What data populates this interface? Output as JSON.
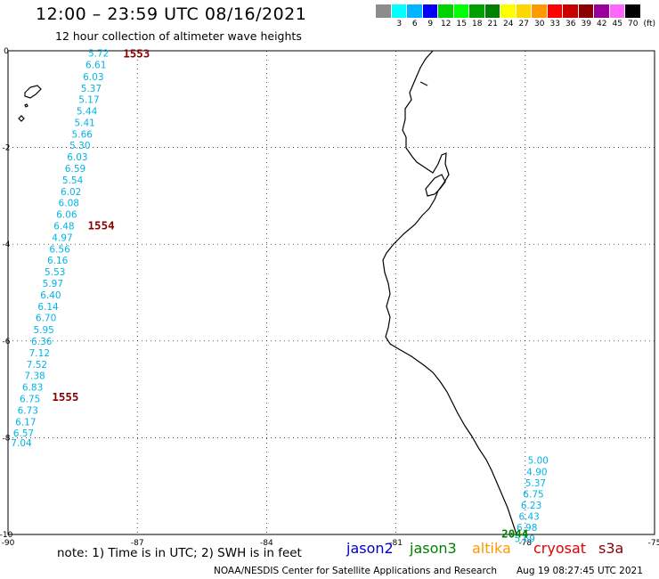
{
  "header": {
    "title": "12:00 – 23:59 UTC 08/16/2021",
    "subtitle": "12 hour collection of altimeter wave heights"
  },
  "scale": {
    "unit": "(ft)",
    "bins": [
      {
        "label": "",
        "color": "#8c8c8c"
      },
      {
        "label": "3",
        "color": "#00ffff"
      },
      {
        "label": "6",
        "color": "#00b4ff"
      },
      {
        "label": "9",
        "color": "#0000ff"
      },
      {
        "label": "12",
        "color": "#00d200"
      },
      {
        "label": "15",
        "color": "#00ff00"
      },
      {
        "label": "18",
        "color": "#00a000"
      },
      {
        "label": "21",
        "color": "#008000"
      },
      {
        "label": "24",
        "color": "#ffff00"
      },
      {
        "label": "27",
        "color": "#ffd700"
      },
      {
        "label": "30",
        "color": "#ff9900"
      },
      {
        "label": "33",
        "color": "#ff0000"
      },
      {
        "label": "36",
        "color": "#c80000"
      },
      {
        "label": "39",
        "color": "#8b0000"
      },
      {
        "label": "42",
        "color": "#990099"
      },
      {
        "label": "45",
        "color": "#ff66ff"
      },
      {
        "label": "70",
        "color": "#000000"
      }
    ]
  },
  "map": {
    "lon_ticks": [
      "-90",
      "-87",
      "-84",
      "-81",
      "-78",
      "-75"
    ],
    "lat_ticks": [
      "0",
      "-2",
      "-4",
      "-6",
      "-8",
      "-10"
    ],
    "tracks": [
      {
        "satellite": "cryosat",
        "text_color": "#00b4e6",
        "time_labels": [
          {
            "text": "1553",
            "lon": -87.33,
            "lat": -0.05
          },
          {
            "text": "1554",
            "lon": -88.15,
            "lat": -3.6
          },
          {
            "text": "1555",
            "lon": -88.98,
            "lat": -7.15
          }
        ],
        "points": [
          {
            "lon": -87.9,
            "lat": -0.05,
            "swh": "5.72"
          },
          {
            "lon": -87.96,
            "lat": -0.29,
            "swh": "6.61"
          },
          {
            "lon": -88.02,
            "lat": -0.53,
            "swh": "6.03"
          },
          {
            "lon": -88.07,
            "lat": -0.77,
            "swh": "5.37"
          },
          {
            "lon": -88.12,
            "lat": -1.0,
            "swh": "5.17"
          },
          {
            "lon": -88.17,
            "lat": -1.24,
            "swh": "5.44"
          },
          {
            "lon": -88.22,
            "lat": -1.48,
            "swh": "5.41"
          },
          {
            "lon": -88.28,
            "lat": -1.72,
            "swh": "5.66"
          },
          {
            "lon": -88.33,
            "lat": -1.95,
            "swh": "5.30"
          },
          {
            "lon": -88.39,
            "lat": -2.19,
            "swh": "6.03"
          },
          {
            "lon": -88.44,
            "lat": -2.43,
            "swh": "6.59"
          },
          {
            "lon": -88.5,
            "lat": -2.67,
            "swh": "5.54"
          },
          {
            "lon": -88.54,
            "lat": -2.91,
            "swh": "6.02"
          },
          {
            "lon": -88.59,
            "lat": -3.14,
            "swh": "6.08"
          },
          {
            "lon": -88.64,
            "lat": -3.38,
            "swh": "6.06"
          },
          {
            "lon": -88.7,
            "lat": -3.62,
            "swh": "6.48"
          },
          {
            "lon": -88.74,
            "lat": -3.86,
            "swh": "4.97"
          },
          {
            "lon": -88.8,
            "lat": -4.1,
            "swh": "6.56"
          },
          {
            "lon": -88.85,
            "lat": -4.33,
            "swh": "6.16"
          },
          {
            "lon": -88.91,
            "lat": -4.57,
            "swh": "5.53"
          },
          {
            "lon": -88.96,
            "lat": -4.81,
            "swh": "5.97"
          },
          {
            "lon": -89.01,
            "lat": -5.05,
            "swh": "6.40"
          },
          {
            "lon": -89.07,
            "lat": -5.29,
            "swh": "6.14"
          },
          {
            "lon": -89.12,
            "lat": -5.52,
            "swh": "6.70"
          },
          {
            "lon": -89.17,
            "lat": -5.76,
            "swh": "5.95"
          },
          {
            "lon": -89.22,
            "lat": -6.0,
            "swh": "6.36"
          },
          {
            "lon": -89.27,
            "lat": -6.24,
            "swh": "7.12"
          },
          {
            "lon": -89.33,
            "lat": -6.48,
            "swh": "7.52"
          },
          {
            "lon": -89.38,
            "lat": -6.71,
            "swh": "7.38"
          },
          {
            "lon": -89.43,
            "lat": -6.95,
            "swh": "6.83"
          },
          {
            "lon": -89.49,
            "lat": -7.19,
            "swh": "6.75"
          },
          {
            "lon": -89.54,
            "lat": -7.43,
            "swh": "6.73"
          },
          {
            "lon": -89.59,
            "lat": -7.67,
            "swh": "6.17"
          },
          {
            "lon": -89.64,
            "lat": -7.9,
            "swh": "6.57"
          },
          {
            "lon": -89.69,
            "lat": -8.1,
            "swh": "7.04"
          }
        ]
      },
      {
        "satellite": "jason3",
        "text_color": "#00b4e6",
        "time_labels": [
          {
            "text": "2044",
            "lon": -78.55,
            "lat": -9.97,
            "color": "#008000"
          }
        ],
        "points": [
          {
            "lon": -77.7,
            "lat": -8.46,
            "swh": "5.00"
          },
          {
            "lon": -77.73,
            "lat": -8.7,
            "swh": "4.90"
          },
          {
            "lon": -77.76,
            "lat": -8.93,
            "swh": "5.37"
          },
          {
            "lon": -77.81,
            "lat": -9.16,
            "swh": "6.75"
          },
          {
            "lon": -77.86,
            "lat": -9.39,
            "swh": "6.23"
          },
          {
            "lon": -77.91,
            "lat": -9.62,
            "swh": "6.43"
          },
          {
            "lon": -77.96,
            "lat": -9.85,
            "swh": "6.98"
          },
          {
            "lon": -78.01,
            "lat": -10.08,
            "swh": "5.69"
          }
        ]
      }
    ]
  },
  "footer": {
    "note": "note:  1) Time is in UTC;  2) SWH is in feet",
    "satellites": [
      {
        "name": "jason2",
        "color": "#0000cc"
      },
      {
        "name": "jason3",
        "color": "#008000"
      },
      {
        "name": "altika",
        "color": "#ff9900"
      },
      {
        "name": "cryosat",
        "color": "#e00000"
      },
      {
        "name": "s3a",
        "color": "#8b0000"
      }
    ],
    "credit": "NOAA/NESDIS Center for Satellite Applications and Research",
    "timestamp": "Aug 19 08:27:45 UTC 2021"
  }
}
